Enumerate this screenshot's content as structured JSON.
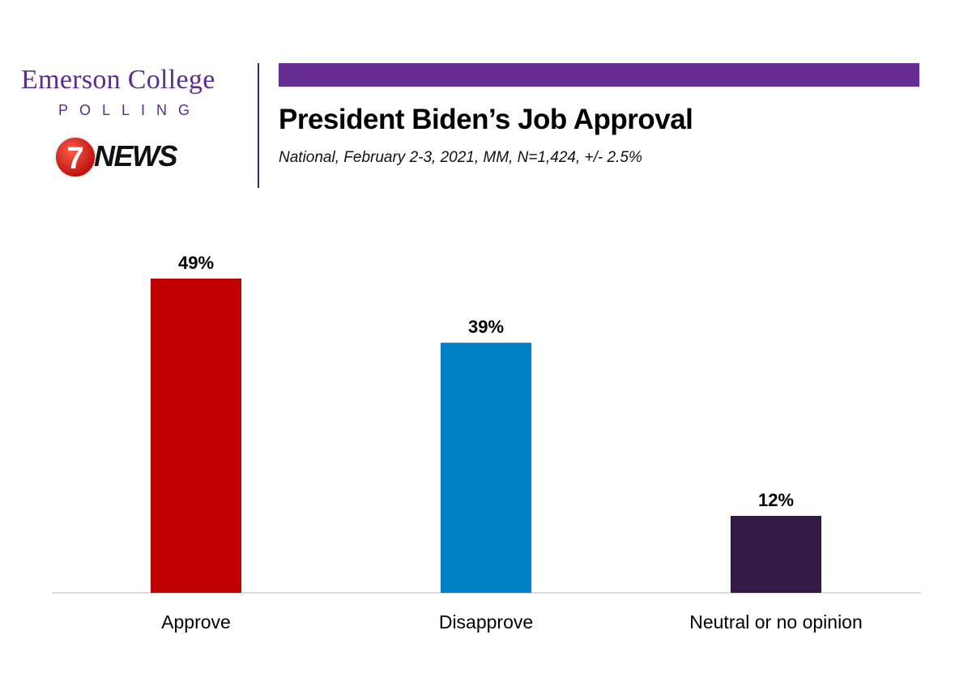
{
  "logo": {
    "org": "Emerson College",
    "sub": "POLLING",
    "partner_num": "7",
    "partner_name": "NEWS"
  },
  "colors": {
    "accent": "#662d91",
    "axis": "#d0d0d0"
  },
  "chart_data": {
    "type": "bar",
    "title": "President Biden’s Job Approval",
    "subtitle": "National, February 2-3, 2021, MM, N=1,424, +/- 2.5%",
    "categories": [
      "Approve",
      "Disapprove",
      "Neutral or no opinion"
    ],
    "values": [
      49,
      39,
      12
    ],
    "value_labels": [
      "49%",
      "39%",
      "12%"
    ],
    "bar_colors": [
      "#c00000",
      "#0080c6",
      "#321a45"
    ],
    "ylim": [
      0,
      49
    ],
    "grid": false,
    "legend": "none"
  }
}
